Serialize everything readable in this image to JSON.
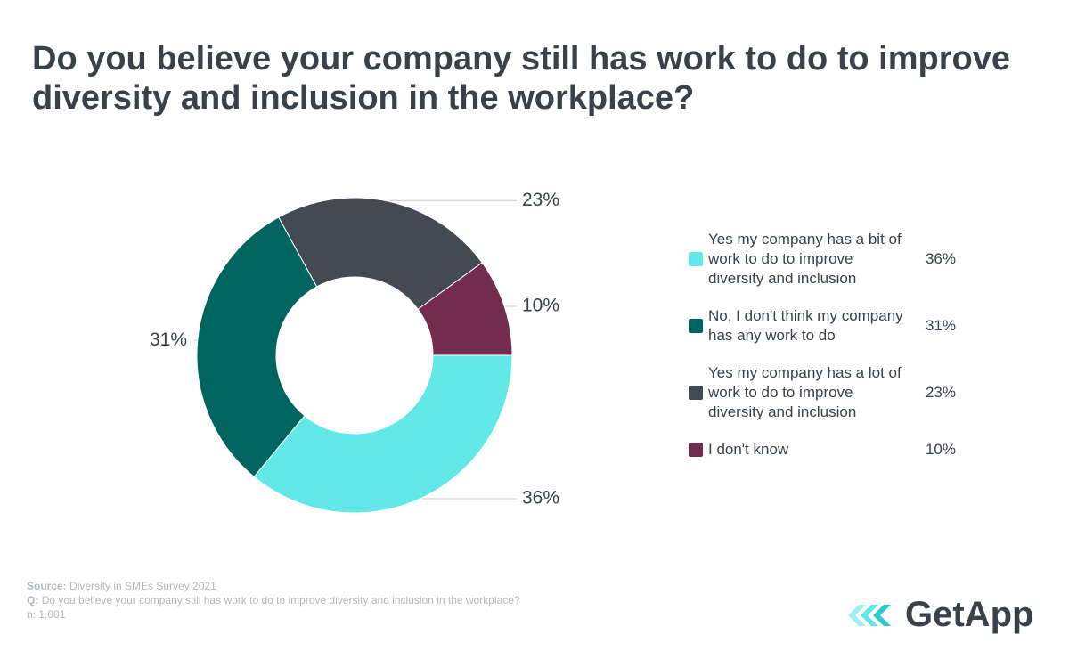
{
  "chart_data": {
    "type": "pie",
    "title": "Do you believe your company still has work to do to improve diversity and inclusion in the workplace?",
    "categories": [
      "Yes my company has a bit of work to do to improve diversity and inclusion",
      "No, I don't think my company has any work to do",
      "Yes my company has a lot of work to do to improve diversity and inclusion",
      "I don't know"
    ],
    "values": [
      36,
      31,
      23,
      10
    ],
    "value_labels": [
      "36%",
      "31%",
      "23%",
      "10%"
    ],
    "colors": [
      "#63e8e8",
      "#00655f",
      "#434a54",
      "#742c4e"
    ],
    "donut": true,
    "legend": "right",
    "source_label": "Source:",
    "source": "Diversity in SMEs Survey 2021",
    "question_label": "Q:",
    "question": "Do you believe your company still has work to do to improve diversity and inclusion in the workplace?",
    "sample": "n: 1,001",
    "logo": "GetApp"
  }
}
